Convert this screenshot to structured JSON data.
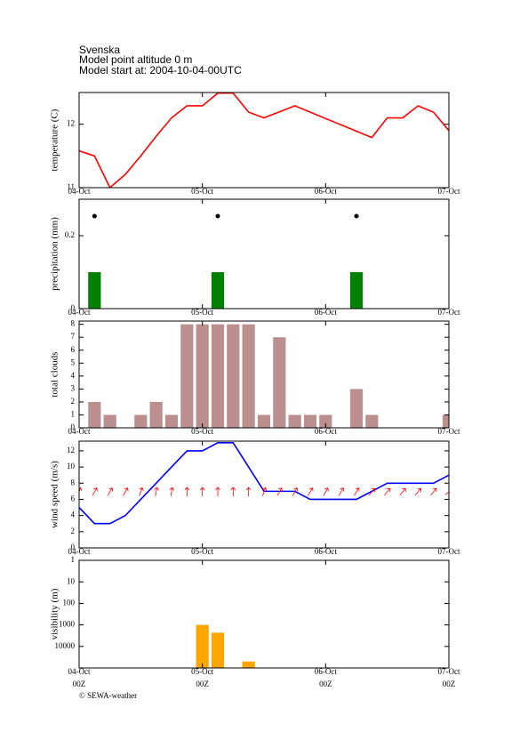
{
  "header": {
    "lines": [
      "Svenska",
      "Model point altitude  0 m",
      "Model start at: 2004-10-04-00UTC"
    ]
  },
  "chart_data": [
    {
      "type": "line",
      "ylabel": "temperature (C)",
      "color": "#ff0000",
      "x": [
        0,
        3,
        6,
        9,
        12,
        15,
        18,
        21,
        24,
        27,
        30,
        33,
        36,
        42,
        57,
        60,
        63,
        66,
        69,
        72
      ],
      "values": [
        11.58,
        11.5,
        11.0,
        11.21,
        11.5,
        11.81,
        12.1,
        12.29,
        12.29,
        12.49,
        12.49,
        12.19,
        12.1,
        12.29,
        11.79,
        12.1,
        12.1,
        12.29,
        12.19,
        11.9
      ],
      "xlim": [
        0,
        72
      ],
      "xticks": [
        {
          "value": 0,
          "label": "04-Oct"
        },
        {
          "value": 24,
          "label": "05-Oct"
        },
        {
          "value": 48,
          "label": "06-Oct"
        },
        {
          "value": 72,
          "label": "07-Oct"
        }
      ],
      "ylim": [
        11,
        12.5
      ],
      "yticks": [
        11,
        12
      ]
    },
    {
      "type": "bar",
      "ylabel": "precipitation (mm)",
      "color": "#008000",
      "x": [
        3,
        27,
        54
      ],
      "values": [
        0.1,
        0.1,
        0.1
      ],
      "xlim": [
        0,
        72
      ],
      "xticks": [
        {
          "value": 0,
          "label": "04-Oct"
        },
        {
          "value": 24,
          "label": "05-Oct"
        },
        {
          "value": 48,
          "label": "06-Oct"
        },
        {
          "value": 72,
          "label": "07-Oct"
        }
      ],
      "ylim": [
        0,
        0.3
      ],
      "yticks": [
        0,
        0.2
      ]
    },
    {
      "type": "bar",
      "ylabel": "total clouds",
      "color": "#bc8f8f",
      "x": [
        3,
        6,
        12,
        15,
        18,
        21,
        24,
        27,
        30,
        33,
        36,
        39,
        42,
        45,
        48,
        54,
        57,
        72
      ],
      "values": [
        2,
        1,
        1,
        2,
        1,
        8,
        8,
        8,
        8,
        8,
        1,
        7,
        1,
        1,
        1,
        3,
        1,
        1
      ],
      "xlim": [
        0,
        72
      ],
      "xticks": [
        {
          "value": 0,
          "label": "04-Oct"
        },
        {
          "value": 24,
          "label": "05-Oct"
        },
        {
          "value": 48,
          "label": "06-Oct"
        },
        {
          "value": 72,
          "label": "07-Oct"
        }
      ],
      "ylim": [
        0,
        8.25
      ],
      "yticks": [
        0,
        1,
        2,
        3,
        4,
        5,
        6,
        7,
        8
      ]
    },
    {
      "type": "line",
      "ylabel": "wind speed (m/s)",
      "color": "#0000ff",
      "x": [
        0,
        3,
        6,
        9,
        12,
        15,
        18,
        21,
        24,
        27,
        30,
        33,
        36,
        39,
        42,
        45,
        48,
        51,
        54,
        57,
        60,
        63,
        66,
        69,
        72
      ],
      "values": [
        5,
        3,
        3,
        4,
        6,
        8,
        10,
        12,
        12,
        13,
        13,
        10,
        7,
        7,
        7,
        6,
        6,
        6,
        6,
        7,
        8,
        8,
        8,
        8,
        9
      ],
      "directions": [
        20,
        30,
        30,
        30,
        20,
        10,
        10,
        0,
        0,
        0,
        0,
        0,
        20,
        30,
        30,
        30,
        30,
        30,
        30,
        40,
        40,
        40,
        40,
        40,
        50
      ],
      "direction_color": "#ff0000",
      "xlim": [
        0,
        72
      ],
      "xticks": [
        {
          "value": 0,
          "label": "04-Oct"
        },
        {
          "value": 24,
          "label": "05-Oct"
        },
        {
          "value": 48,
          "label": "06-Oct"
        },
        {
          "value": 72,
          "label": "07-Oct"
        }
      ],
      "ylim": [
        0,
        13.2
      ],
      "yticks": [
        0,
        2,
        4,
        6,
        8,
        10,
        12
      ]
    },
    {
      "type": "bar",
      "ylabel": "visibility (m)",
      "color": "#ffa500",
      "log": true,
      "y_inverted": true,
      "x": [
        24,
        27,
        33
      ],
      "values": [
        1000,
        2300,
        50000
      ],
      "xlim": [
        0,
        72
      ],
      "xticks": [
        {
          "value": 0,
          "label": "04-Oct"
        },
        {
          "value": 24,
          "label": "05-Oct"
        },
        {
          "value": 48,
          "label": "06-Oct"
        },
        {
          "value": 72,
          "label": "07-Oct"
        }
      ],
      "xticks_sub": [
        {
          "value": 0,
          "label": "00Z"
        },
        {
          "value": 24,
          "label": "00Z"
        },
        {
          "value": 48,
          "label": "00Z"
        },
        {
          "value": 72,
          "label": "00Z"
        }
      ],
      "ylim": [
        1,
        100000
      ],
      "yticks": [
        1,
        10,
        100,
        1000,
        10000
      ]
    }
  ],
  "footer": "© SEWA-weather"
}
